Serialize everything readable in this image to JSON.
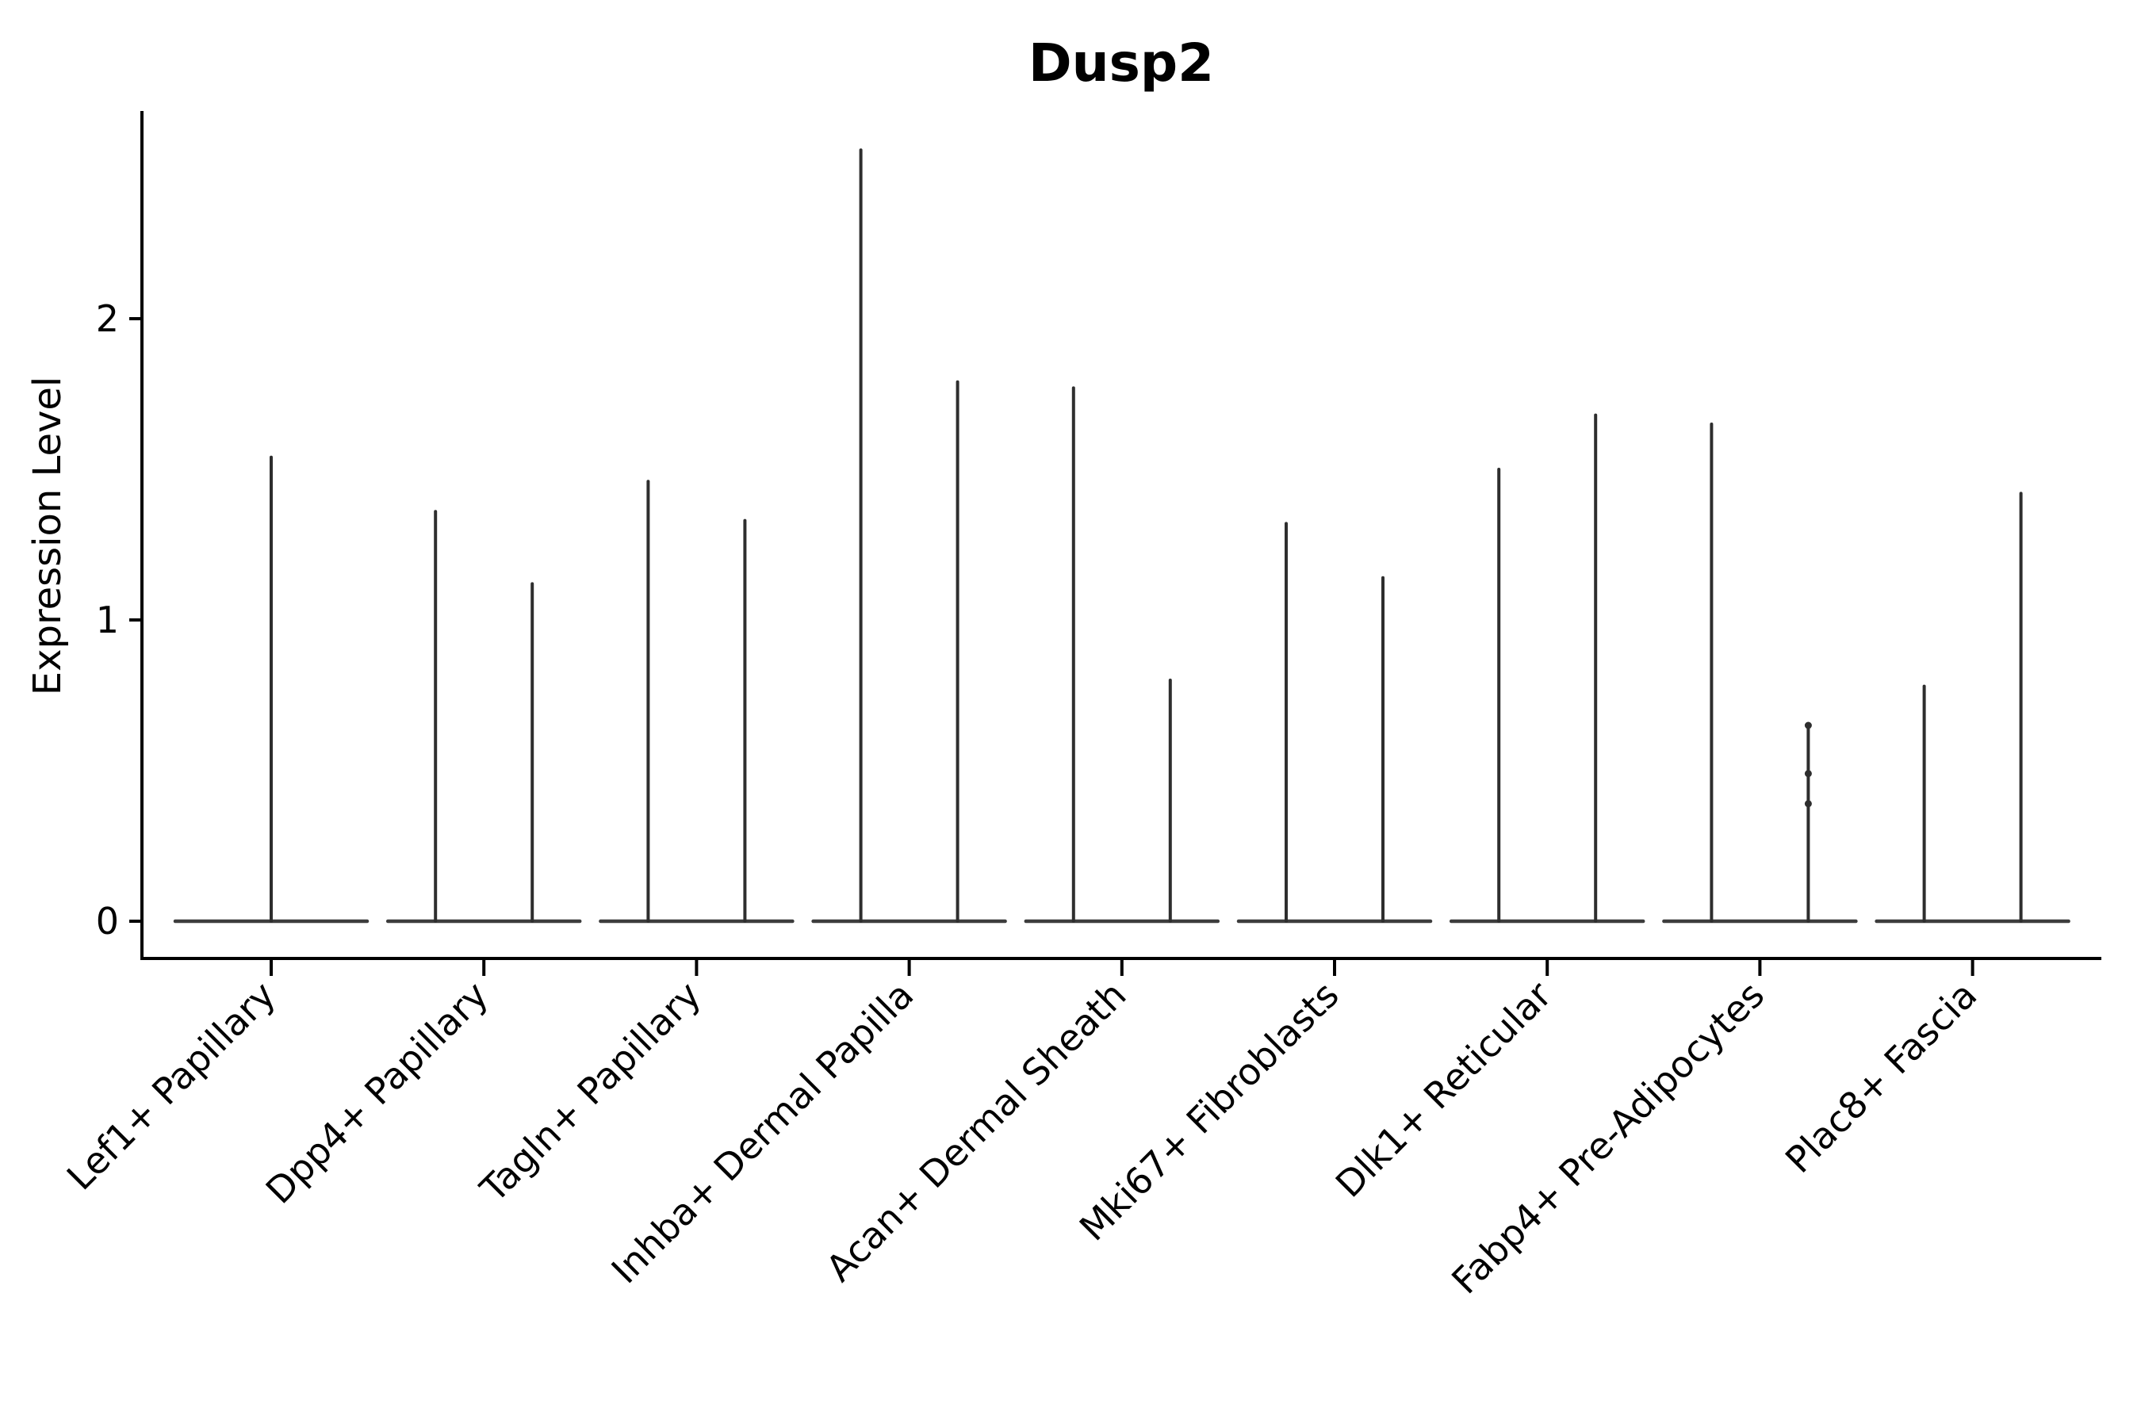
{
  "title": "Dusp2",
  "chart_data": {
    "type": "violin",
    "title": "Dusp2",
    "xlabel": "",
    "ylabel": "Expression Level",
    "yticks": [
      0,
      1,
      2
    ],
    "ylim": [
      -0.12,
      2.7
    ],
    "grid": false,
    "legend": "none",
    "baseline_value": 0,
    "categories": [
      "Lef1+ Papillary",
      "Dpp4+ Papillary",
      "Tagln+ Papillary",
      "Inhba+ Dermal Papilla",
      "Acan+ Dermal Sheath",
      "Mki67+ Fibroblasts",
      "Dlk1+ Reticular",
      "Fabp4+ Pre-Adipocytes",
      "Plac8+ Fascia"
    ],
    "groups": [
      {
        "label": "Lef1+ Papillary",
        "violins": [
          {
            "max": 1.54
          }
        ]
      },
      {
        "label": "Dpp4+ Papillary",
        "violins": [
          {
            "max": 1.36
          },
          {
            "max": 1.12
          }
        ]
      },
      {
        "label": "Tagln+ Papillary",
        "violins": [
          {
            "max": 1.46
          },
          {
            "max": 1.33
          }
        ]
      },
      {
        "label": "Inhba+ Dermal Papilla",
        "violins": [
          {
            "max": 2.56
          },
          {
            "max": 1.79
          }
        ]
      },
      {
        "label": "Acan+ Dermal Sheath",
        "violins": [
          {
            "max": 1.77
          },
          {
            "max": 0.8
          }
        ]
      },
      {
        "label": "Mki67+ Fibroblasts",
        "violins": [
          {
            "max": 1.32
          },
          {
            "max": 1.14
          }
        ]
      },
      {
        "label": "Dlk1+ Reticular",
        "violins": [
          {
            "max": 1.5
          },
          {
            "max": 1.68
          }
        ]
      },
      {
        "label": "Fabp4+ Pre-Adipocytes",
        "violins": [
          {
            "max": 1.65
          },
          {
            "max": 0.65,
            "points": [
              0.65,
              0.49,
              0.39
            ]
          }
        ]
      },
      {
        "label": "Plac8+ Fascia",
        "violins": [
          {
            "max": 0.78
          },
          {
            "max": 1.42
          }
        ]
      }
    ]
  },
  "colors": {
    "text": "#000000",
    "spine": "#000000",
    "violin_line": "#2e2e2e",
    "baseline_line": "#3d3d3d",
    "background": "#ffffff"
  }
}
